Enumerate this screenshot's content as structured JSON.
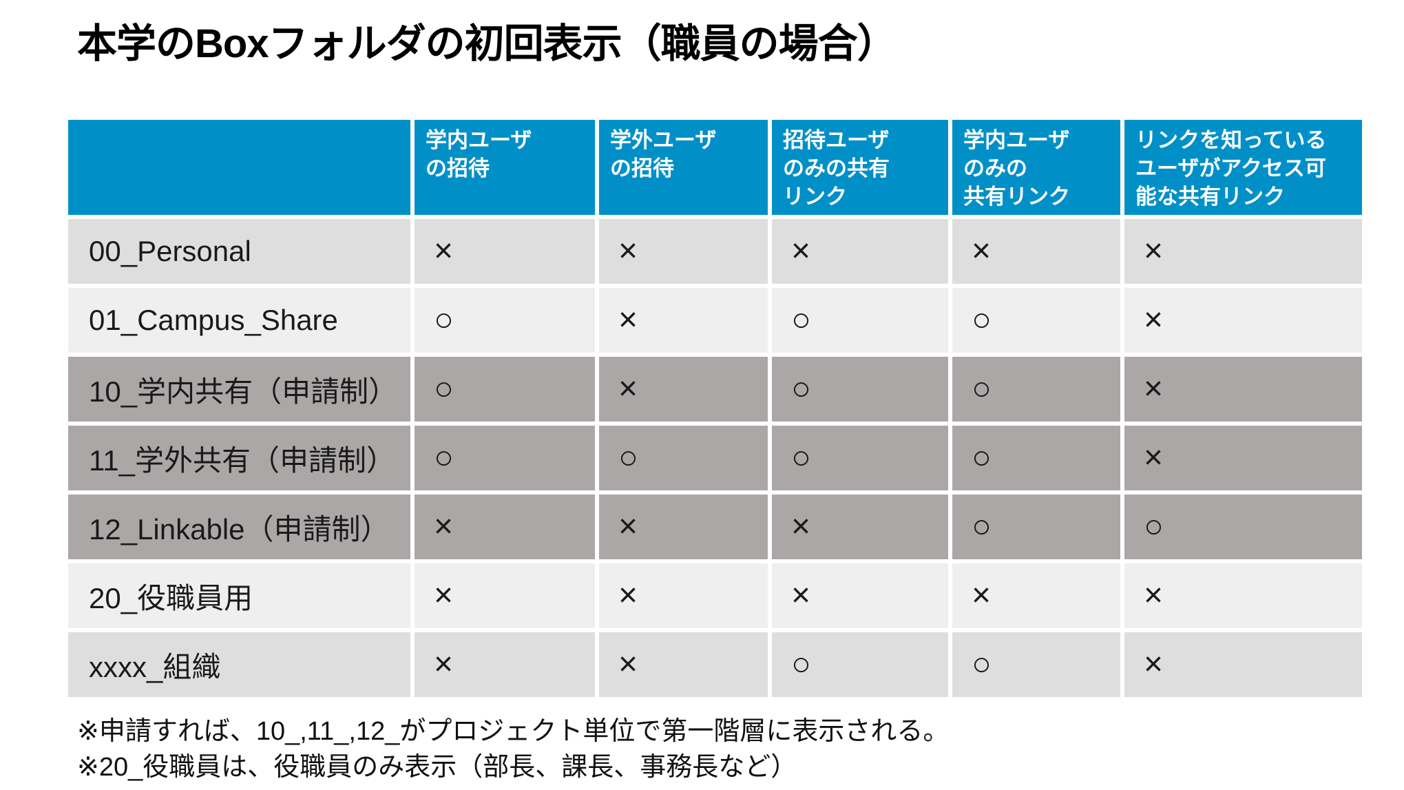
{
  "title": "本学のBoxフォルダの初回表示（職員の場合）",
  "table": {
    "corner_label": "",
    "headers": [
      "学内ユーザ\nの招待",
      "学外ユーザ\nの招待",
      "招待ユーザ\nのみの共有\nリンク",
      "学内ユーザ\nのみの\n共有リンク",
      "リンクを知っている\nユーザがアクセス可\n能な共有リンク"
    ],
    "rows": [
      {
        "label": "00_Personal",
        "tone": "gray",
        "values": [
          "×",
          "×",
          "×",
          "×",
          "×"
        ]
      },
      {
        "label": "01_Campus_Share",
        "tone": "light",
        "values": [
          "○",
          "×",
          "○",
          "○",
          "×"
        ]
      },
      {
        "label": "10_学内共有（申請制）",
        "tone": "dark",
        "values": [
          "○",
          "×",
          "○",
          "○",
          "×"
        ]
      },
      {
        "label": "11_学外共有（申請制）",
        "tone": "dark",
        "values": [
          "○",
          "○",
          "○",
          "○",
          "×"
        ]
      },
      {
        "label": "12_Linkable（申請制）",
        "tone": "dark",
        "values": [
          "×",
          "×",
          "×",
          "○",
          "○"
        ]
      },
      {
        "label": "20_役職員用",
        "tone": "light",
        "values": [
          "×",
          "×",
          "×",
          "×",
          "×"
        ]
      },
      {
        "label": "xxxx_組織",
        "tone": "gray",
        "values": [
          "×",
          "×",
          "○",
          "○",
          "×"
        ]
      }
    ],
    "legend": {
      "allowed_symbol": "○",
      "denied_symbol": "×"
    }
  },
  "footnotes": [
    "※申請すれば、10_,11_,12_がプロジェクト単位で第一階層に表示される。",
    "※20_役職員は、役職員のみ表示（部長、課長、事務長など）"
  ],
  "colors": {
    "header_bg": "#0090C7",
    "header_text": "#FFFFFF",
    "row_gray": "#DFDEDE",
    "row_light": "#F0EFEF",
    "row_dark": "#ABA7A7",
    "text": "#111111"
  }
}
